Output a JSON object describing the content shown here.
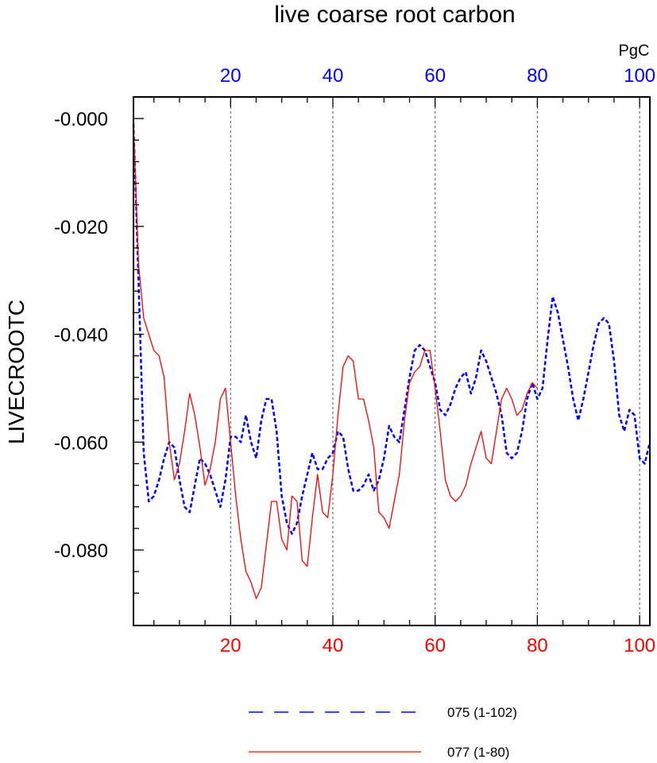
{
  "chart_data": {
    "type": "line",
    "title": "live coarse root carbon",
    "ylabel": "LIVECROOTC",
    "units": "PgC",
    "xlim": [
      1,
      102
    ],
    "ylim": [
      -0.094,
      0.004
    ],
    "x_ticks": [
      20,
      40,
      60,
      80,
      100
    ],
    "y_ticks": [
      -0.0,
      -0.02,
      -0.04,
      -0.06,
      -0.08
    ],
    "y_tick_labels": [
      "-0.000",
      "-0.020",
      "-0.040",
      "-0.060",
      "-0.080"
    ],
    "grid": "vertical dotted at major x ticks",
    "top_axis_color": "#0000ff",
    "bottom_axis_color": "#ff0000",
    "series": [
      {
        "name": "075 (1-102)",
        "color": "#0000ff",
        "style": "dashed",
        "x": [
          1,
          2,
          3,
          4,
          5,
          6,
          7,
          8,
          9,
          10,
          11,
          12,
          13,
          14,
          15,
          16,
          17,
          18,
          19,
          20,
          21,
          22,
          23,
          24,
          25,
          26,
          27,
          28,
          29,
          30,
          31,
          32,
          33,
          34,
          35,
          36,
          37,
          38,
          39,
          40,
          41,
          42,
          43,
          44,
          45,
          46,
          47,
          48,
          49,
          50,
          51,
          52,
          53,
          54,
          55,
          56,
          57,
          58,
          59,
          60,
          61,
          62,
          63,
          64,
          65,
          66,
          67,
          68,
          69,
          70,
          71,
          72,
          73,
          74,
          75,
          76,
          77,
          78,
          79,
          80,
          81,
          82,
          83,
          84,
          85,
          86,
          87,
          88,
          89,
          90,
          91,
          92,
          93,
          94,
          95,
          96,
          97,
          98,
          99,
          100,
          101,
          102
        ],
        "values": [
          -0.001,
          -0.03,
          -0.062,
          -0.071,
          -0.07,
          -0.067,
          -0.063,
          -0.06,
          -0.061,
          -0.067,
          -0.072,
          -0.073,
          -0.068,
          -0.063,
          -0.064,
          -0.066,
          -0.069,
          -0.072,
          -0.067,
          -0.059,
          -0.059,
          -0.06,
          -0.055,
          -0.06,
          -0.063,
          -0.056,
          -0.052,
          -0.052,
          -0.058,
          -0.07,
          -0.075,
          -0.077,
          -0.075,
          -0.07,
          -0.066,
          -0.062,
          -0.065,
          -0.065,
          -0.063,
          -0.062,
          -0.058,
          -0.059,
          -0.065,
          -0.069,
          -0.069,
          -0.068,
          -0.066,
          -0.069,
          -0.067,
          -0.063,
          -0.057,
          -0.059,
          -0.06,
          -0.054,
          -0.048,
          -0.043,
          -0.042,
          -0.043,
          -0.046,
          -0.049,
          -0.054,
          -0.055,
          -0.053,
          -0.05,
          -0.048,
          -0.047,
          -0.051,
          -0.048,
          -0.043,
          -0.045,
          -0.048,
          -0.051,
          -0.055,
          -0.062,
          -0.063,
          -0.062,
          -0.058,
          -0.052,
          -0.049,
          -0.052,
          -0.05,
          -0.041,
          -0.033,
          -0.036,
          -0.041,
          -0.046,
          -0.052,
          -0.056,
          -0.052,
          -0.047,
          -0.042,
          -0.038,
          -0.037,
          -0.038,
          -0.045,
          -0.055,
          -0.058,
          -0.054,
          -0.055,
          -0.063,
          -0.064,
          -0.06
        ]
      },
      {
        "name": "077 (1-80)",
        "color": "#ff0000",
        "style": "solid",
        "x": [
          1,
          2,
          3,
          4,
          5,
          6,
          7,
          8,
          9,
          10,
          11,
          12,
          13,
          14,
          15,
          16,
          17,
          18,
          19,
          20,
          21,
          22,
          23,
          24,
          25,
          26,
          27,
          28,
          29,
          30,
          31,
          32,
          33,
          34,
          35,
          36,
          37,
          38,
          39,
          40,
          41,
          42,
          43,
          44,
          45,
          46,
          47,
          48,
          49,
          50,
          51,
          52,
          53,
          54,
          55,
          56,
          57,
          58,
          59,
          60,
          61,
          62,
          63,
          64,
          65,
          66,
          67,
          68,
          69,
          70,
          71,
          72,
          73,
          74,
          75,
          76,
          77,
          78,
          79,
          80
        ],
        "values": [
          -0.001,
          -0.027,
          -0.037,
          -0.04,
          -0.043,
          -0.044,
          -0.048,
          -0.06,
          -0.067,
          -0.064,
          -0.058,
          -0.051,
          -0.055,
          -0.061,
          -0.068,
          -0.065,
          -0.06,
          -0.052,
          -0.05,
          -0.06,
          -0.07,
          -0.078,
          -0.084,
          -0.086,
          -0.089,
          -0.087,
          -0.079,
          -0.071,
          -0.071,
          -0.078,
          -0.08,
          -0.07,
          -0.071,
          -0.082,
          -0.083,
          -0.074,
          -0.066,
          -0.073,
          -0.074,
          -0.066,
          -0.055,
          -0.046,
          -0.044,
          -0.045,
          -0.052,
          -0.052,
          -0.056,
          -0.061,
          -0.073,
          -0.074,
          -0.076,
          -0.071,
          -0.066,
          -0.056,
          -0.049,
          -0.047,
          -0.046,
          -0.043,
          -0.043,
          -0.05,
          -0.058,
          -0.067,
          -0.07,
          -0.071,
          -0.07,
          -0.068,
          -0.064,
          -0.061,
          -0.058,
          -0.063,
          -0.064,
          -0.058,
          -0.052,
          -0.05,
          -0.052,
          -0.055,
          -0.054,
          -0.051,
          -0.049,
          -0.05
        ]
      }
    ]
  }
}
